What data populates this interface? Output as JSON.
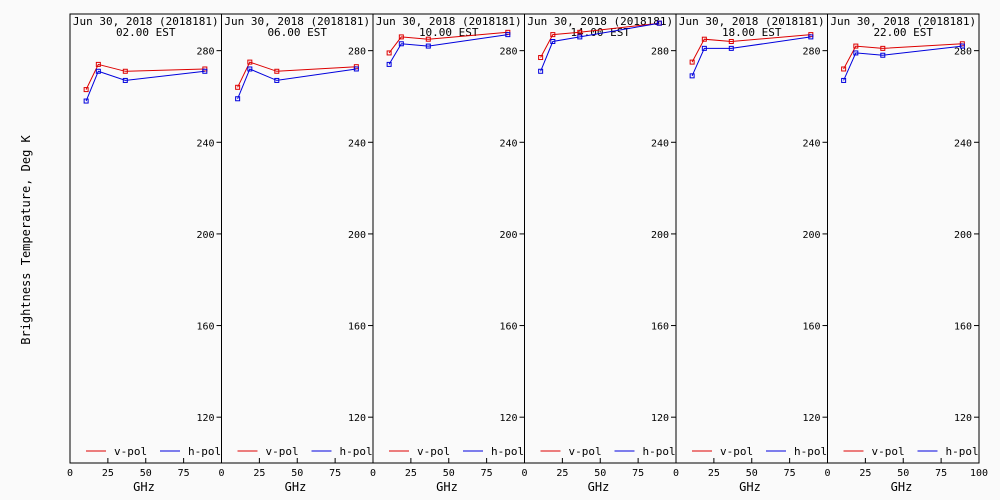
{
  "chart_data": {
    "type": "line",
    "ylabel": "Brightness Temperature, Deg K",
    "xlabel": "GHz",
    "xlim": [
      0,
      100
    ],
    "ylim": [
      100,
      296
    ],
    "xticks": [
      0,
      25,
      50,
      75,
      100
    ],
    "xtick_labels": [
      "0",
      "25",
      "50",
      "75",
      "100"
    ],
    "yticks": [
      120,
      160,
      200,
      240,
      280
    ],
    "ytick_labels": [
      "120",
      "160",
      "200",
      "240",
      "280"
    ],
    "legend": {
      "placement": "bottom",
      "entries": [
        "v-pol",
        "h-pol"
      ]
    },
    "series_colors": {
      "v-pol": "#dd0000",
      "h-pol": "#0000dd"
    },
    "panels": [
      {
        "title": "Jun 30, 2018 (2018181)",
        "subtitle": "02.00 EST",
        "series": [
          {
            "name": "v-pol",
            "x": [
              10.65,
              18.7,
              36.5,
              89
            ],
            "y": [
              263,
              274,
              271,
              272
            ]
          },
          {
            "name": "h-pol",
            "x": [
              10.65,
              18.7,
              36.5,
              89
            ],
            "y": [
              258,
              271,
              267,
              271
            ]
          }
        ]
      },
      {
        "title": "Jun 30, 2018 (2018181)",
        "subtitle": "06.00 EST",
        "series": [
          {
            "name": "v-pol",
            "x": [
              10.65,
              18.7,
              36.5,
              89
            ],
            "y": [
              264,
              275,
              271,
              273
            ]
          },
          {
            "name": "h-pol",
            "x": [
              10.65,
              18.7,
              36.5,
              89
            ],
            "y": [
              259,
              272,
              267,
              272
            ]
          }
        ]
      },
      {
        "title": "Jun 30, 2018 (2018181)",
        "subtitle": "10.00 EST",
        "series": [
          {
            "name": "v-pol",
            "x": [
              10.65,
              18.7,
              36.5,
              89
            ],
            "y": [
              279,
              286,
              285,
              288
            ]
          },
          {
            "name": "h-pol",
            "x": [
              10.65,
              18.7,
              36.5,
              89
            ],
            "y": [
              274,
              283,
              282,
              287
            ]
          }
        ]
      },
      {
        "title": "Jun 30, 2018 (2018181)",
        "subtitle": "14.00 EST",
        "series": [
          {
            "name": "v-pol",
            "x": [
              10.65,
              18.7,
              36.5,
              89
            ],
            "y": [
              277,
              287,
              288,
              292
            ]
          },
          {
            "name": "h-pol",
            "x": [
              10.65,
              18.7,
              36.5,
              89
            ],
            "y": [
              271,
              284,
              286,
              292
            ]
          }
        ]
      },
      {
        "title": "Jun 30, 2018 (2018181)",
        "subtitle": "18.00 EST",
        "series": [
          {
            "name": "v-pol",
            "x": [
              10.65,
              18.7,
              36.5,
              89
            ],
            "y": [
              275,
              285,
              284,
              287
            ]
          },
          {
            "name": "h-pol",
            "x": [
              10.65,
              18.7,
              36.5,
              89
            ],
            "y": [
              269,
              281,
              281,
              286
            ]
          }
        ]
      },
      {
        "title": "Jun 30, 2018 (2018181)",
        "subtitle": "22.00 EST",
        "series": [
          {
            "name": "v-pol",
            "x": [
              10.65,
              18.7,
              36.5,
              89
            ],
            "y": [
              272,
              282,
              281,
              283
            ]
          },
          {
            "name": "h-pol",
            "x": [
              10.65,
              18.7,
              36.5,
              89
            ],
            "y": [
              267,
              279,
              278,
              282
            ]
          }
        ]
      }
    ]
  }
}
